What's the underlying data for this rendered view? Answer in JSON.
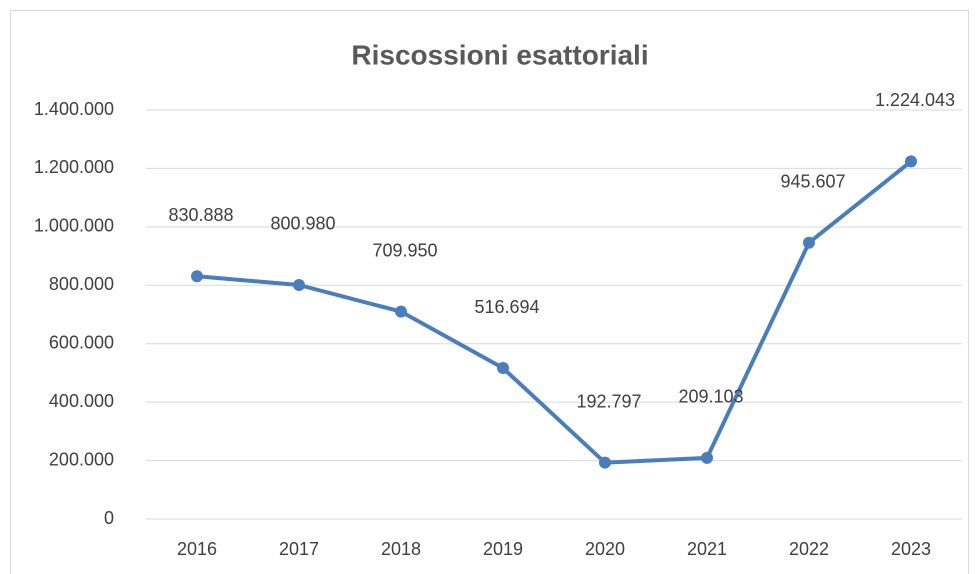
{
  "chart_data": {
    "type": "line",
    "title": "Riscossioni esattoriali",
    "categories": [
      "2016",
      "2017",
      "2018",
      "2019",
      "2020",
      "2021",
      "2022",
      "2023"
    ],
    "series": [
      {
        "name": "Riscossioni esattoriali",
        "color": "#4a7ebb",
        "values": [
          830888,
          800980,
          709950,
          516694,
          192797,
          209103,
          945607,
          1224043
        ],
        "value_labels": [
          "830.888",
          "800.980",
          "709.950",
          "516.694",
          "192.797",
          "209.103",
          "945.607",
          "1.224.043"
        ]
      }
    ],
    "ylim": [
      0,
      1400000
    ],
    "yticks": [
      0,
      {
        "value": 200000,
        "label": "200.000"
      },
      {
        "value": 400000,
        "label": "400.000"
      },
      {
        "value": 600000,
        "label": "600.000"
      },
      {
        "value": 800000,
        "label": "800.000"
      },
      {
        "value": 1000000,
        "label": "1.000.000"
      },
      {
        "value": 1200000,
        "label": "1.200.000"
      },
      {
        "value": 1400000,
        "label": "1.400.000"
      }
    ],
    "grid": true
  }
}
